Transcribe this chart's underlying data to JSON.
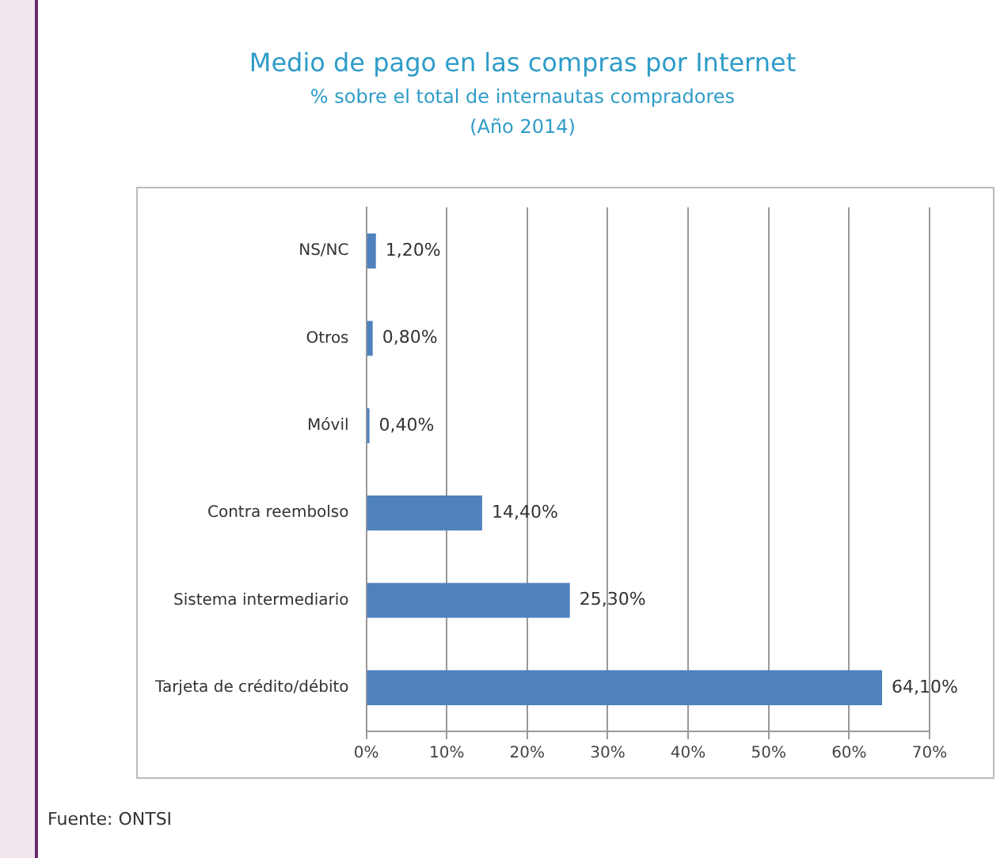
{
  "chart_data": {
    "type": "bar",
    "orientation": "horizontal",
    "title": "Medio de pago en las compras por Internet",
    "subtitle": "% sobre el total de internautas compradores\n(Año 2014)",
    "categories": [
      "NS/NC",
      "Otros",
      "Móvil",
      "Contra reembolso",
      "Sistema intermediario",
      "Tarjeta de crédito/débito"
    ],
    "values": [
      1.2,
      0.8,
      0.4,
      14.4,
      25.3,
      64.1
    ],
    "value_labels": [
      "1,20%",
      "0,80%",
      "0,40%",
      "14,40%",
      "25,30%",
      "64,10%"
    ],
    "color": "#4f81bd",
    "xlim": [
      0,
      70
    ],
    "xticks": [
      {
        "value": 0,
        "label": "0%"
      },
      {
        "value": 10,
        "label": "10%"
      },
      {
        "value": 20,
        "label": "20%"
      },
      {
        "value": 30,
        "label": "30%"
      },
      {
        "value": 40,
        "label": "40%"
      },
      {
        "value": 50,
        "label": "50%"
      },
      {
        "value": 60,
        "label": "60%"
      },
      {
        "value": 70,
        "label": "70%"
      }
    ],
    "grid": "x",
    "annotations": [
      "Fuente: ONTSI"
    ]
  }
}
